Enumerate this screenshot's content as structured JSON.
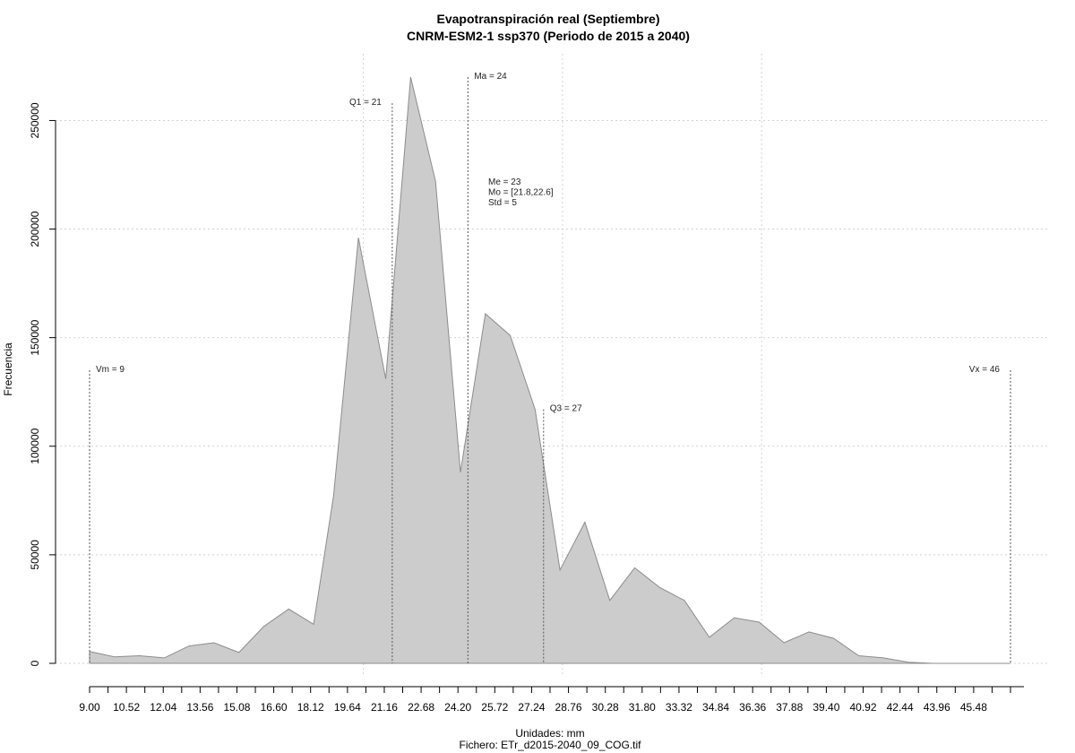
{
  "chart_data": {
    "type": "area",
    "title": "Evapotranspiración real (Septiembre)",
    "subtitle": "CNRM-ESM2-1 ssp370 (Periodo de 2015 a 2040)",
    "xlabel": "Unidades: mm",
    "ylabel": "Frecuencia",
    "footer": "Fichero: ETr_d2015-2040_09_COG.tif",
    "xlim": [
      9.0,
      46.0
    ],
    "ylim": [
      0,
      270000
    ],
    "grid": true,
    "x_ticks": [
      "9.00",
      "10.52",
      "12.04",
      "13.56",
      "15.08",
      "16.60",
      "18.12",
      "19.64",
      "21.16",
      "22.68",
      "24.20",
      "25.72",
      "27.24",
      "28.76",
      "30.28",
      "31.80",
      "33.32",
      "34.84",
      "36.36",
      "37.88",
      "39.40",
      "40.92",
      "42.44",
      "43.96",
      "45.48"
    ],
    "y_ticks": [
      "0",
      "50000",
      "100000",
      "150000",
      "200000",
      "250000"
    ],
    "x": [
      9.0,
      10.0,
      11.0,
      12.0,
      13.0,
      14.0,
      15.0,
      16.0,
      17.0,
      18.0,
      18.8,
      19.8,
      20.9,
      21.9,
      22.9,
      23.9,
      24.9,
      25.9,
      26.9,
      27.9,
      28.9,
      29.9,
      30.9,
      31.9,
      32.9,
      33.9,
      34.9,
      35.9,
      36.9,
      37.9,
      38.9,
      39.9,
      40.9,
      41.9,
      42.9,
      43.9,
      44.9,
      46.0
    ],
    "values": [
      5500,
      3000,
      3500,
      2500,
      8000,
      9500,
      5000,
      17000,
      25000,
      18000,
      77000,
      196000,
      131000,
      270000,
      222000,
      88000,
      161000,
      151000,
      117000,
      43000,
      65000,
      29000,
      44000,
      35000,
      29000,
      12000,
      21000,
      19000,
      9500,
      14500,
      11500,
      3500,
      2500,
      500,
      0,
      0,
      0,
      0
    ],
    "colors": {
      "fill": "#cccccc",
      "stroke": "#8c8c8c",
      "grid": "#d2d2d2",
      "marker": "#555555"
    },
    "annotations": [
      {
        "text": "Vm = 9",
        "x": 9.0,
        "y": 135000,
        "anchor": "start",
        "line": true
      },
      {
        "text": "Q1 = 21",
        "x": 21.16,
        "y": 258000,
        "anchor": "end",
        "line": true
      },
      {
        "text": "Ma = 24",
        "x": 24.2,
        "y": 270000,
        "anchor": "start",
        "line": true
      },
      {
        "text": "Q3 = 27",
        "x": 27.24,
        "y": 117000,
        "anchor": "start",
        "line": true
      },
      {
        "text": "Vx = 46",
        "x": 46.0,
        "y": 135000,
        "anchor": "end",
        "line": true
      }
    ],
    "stats": [
      "Me = 23",
      "Mo = [21.8,22.6]",
      "Std = 5"
    ]
  }
}
